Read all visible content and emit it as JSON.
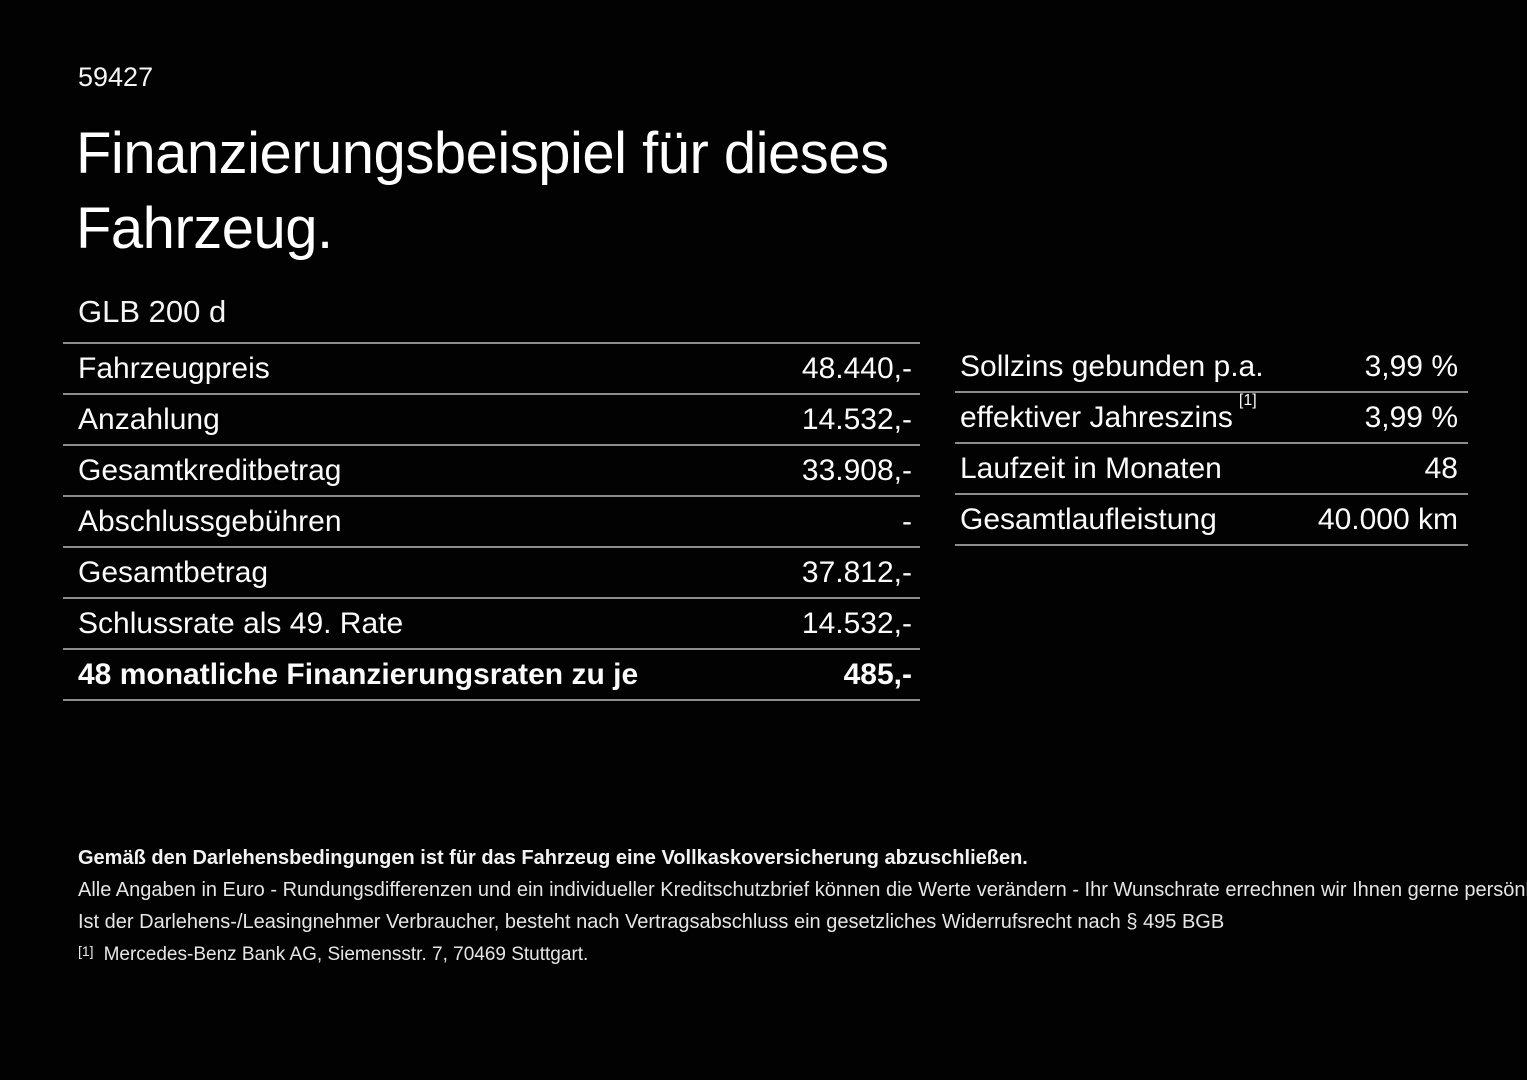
{
  "page": {
    "doc_number": "59427",
    "title": "Finanzierungsbeispiel für dieses Fahrzeug.",
    "vehicle_model": "GLB 200 d"
  },
  "left_table": {
    "rows": [
      {
        "label": "Fahrzeugpreis",
        "value": "48.440,-"
      },
      {
        "label": "Anzahlung",
        "value": "14.532,-"
      },
      {
        "label": "Gesamtkreditbetrag",
        "value": "33.908,-"
      },
      {
        "label": "Abschlussgebühren",
        "value": "-"
      },
      {
        "label": "Gesamtbetrag",
        "value": "37.812,-"
      },
      {
        "label": "Schlussrate als 49. Rate",
        "value": "14.532,-"
      },
      {
        "label": "48 monatliche Finanzierungsraten zu je",
        "value": "485,-"
      }
    ]
  },
  "right_table": {
    "rows": [
      {
        "label": "Sollzins gebunden p.a.",
        "value": "3,99 %"
      },
      {
        "label": "effektiver Jahreszins",
        "superscript": "[1]",
        "value": "3,99 %"
      },
      {
        "label": "Laufzeit in Monaten",
        "value": "48"
      },
      {
        "label": "Gesamtlaufleistung",
        "value": "40.000 km"
      }
    ]
  },
  "footer": {
    "line1": "Gemäß den Darlehensbedingungen ist für das Fahrzeug eine Vollkaskoversicherung abzuschließen.",
    "line2": "Alle Angaben in Euro - Rundungsdifferenzen und ein individueller Kreditschutzbrief können die Werte verändern - Ihr Wunschrate errechnen wir Ihnen gerne persönlich",
    "line3": "Ist der Darlehens-/Leasingnehmer Verbraucher, besteht nach Vertragsabschluss ein gesetzliches Widerrufsrecht nach § 495 BGB",
    "footnote_marker": "[1]",
    "footnote_text": "Mercedes-Benz Bank AG, Siemensstr. 7, 70469 Stuttgart."
  },
  "colors": {
    "background": "#020202",
    "text": "#ffffff",
    "divider": "#8d8d8d"
  }
}
